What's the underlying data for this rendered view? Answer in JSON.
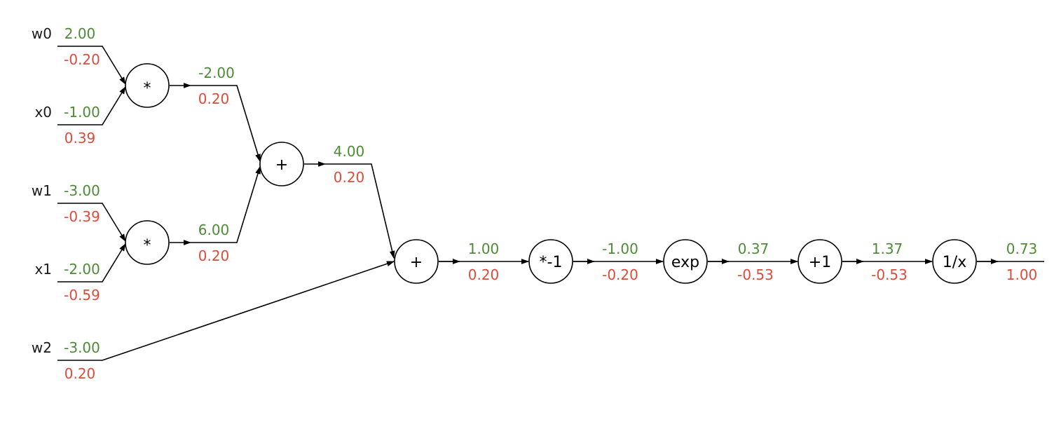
{
  "colors": {
    "forward": "#4e8b38",
    "gradient": "#dd4b39",
    "line": "#000000"
  },
  "inputs": [
    {
      "name": "w0",
      "value": "2.00",
      "grad": "-0.20"
    },
    {
      "name": "x0",
      "value": "-1.00",
      "grad": "0.39"
    },
    {
      "name": "w1",
      "value": "-3.00",
      "grad": "-0.39"
    },
    {
      "name": "x1",
      "value": "-2.00",
      "grad": "-0.59"
    },
    {
      "name": "w2",
      "value": "-3.00",
      "grad": "0.20"
    }
  ],
  "nodes": [
    {
      "op": "*"
    },
    {
      "op": "*"
    },
    {
      "op": "+"
    },
    {
      "op": "+"
    },
    {
      "op": "*-1"
    },
    {
      "op": "exp"
    },
    {
      "op": "+1"
    },
    {
      "op": "1/x"
    }
  ],
  "edges": [
    {
      "value": "-2.00",
      "grad": "0.20"
    },
    {
      "value": "6.00",
      "grad": "0.20"
    },
    {
      "value": "4.00",
      "grad": "0.20"
    },
    {
      "value": "1.00",
      "grad": "0.20"
    },
    {
      "value": "-1.00",
      "grad": "-0.20"
    },
    {
      "value": "0.37",
      "grad": "-0.53"
    },
    {
      "value": "1.37",
      "grad": "-0.53"
    },
    {
      "value": "0.73",
      "grad": "1.00"
    }
  ]
}
